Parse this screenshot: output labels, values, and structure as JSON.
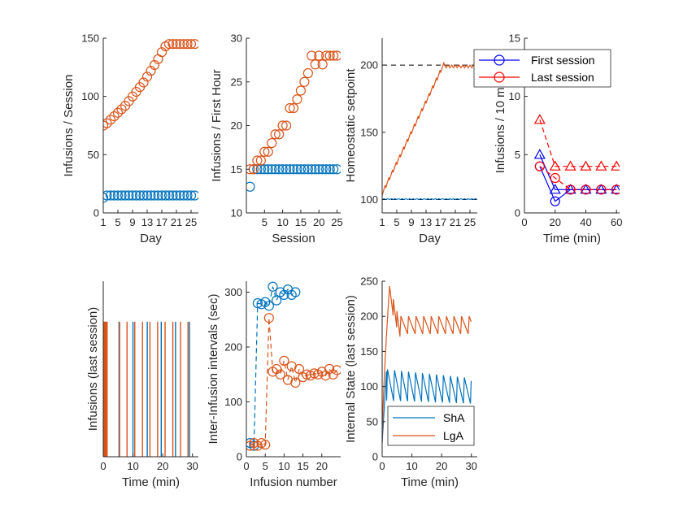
{
  "colors": {
    "sha": "#0072bd",
    "lga": "#d95319",
    "first": "#0000ff",
    "last": "#ff0000",
    "axis": "#262626"
  },
  "chart_data": [
    {
      "type": "scatter",
      "xlabel": "Day",
      "ylabel": "Infusions / Session",
      "xlim": [
        1,
        27
      ],
      "ylim": [
        0,
        150
      ],
      "x_ticks": [
        1,
        5,
        9,
        13,
        17,
        21,
        25
      ],
      "x_tick_labels": [
        "1",
        "5",
        "9",
        "13",
        "17",
        "21",
        "25"
      ],
      "y_ticks": [
        0,
        50,
        100,
        150
      ],
      "y_tick_labels": [
        "0",
        "50",
        "100",
        "150"
      ],
      "series": [
        {
          "color_key": "sha",
          "marker": "circle",
          "x": [
            1,
            2,
            3,
            4,
            5,
            6,
            7,
            8,
            9,
            10,
            11,
            12,
            13,
            14,
            15,
            16,
            17,
            18,
            19,
            20,
            21,
            22,
            23,
            24,
            25,
            26
          ],
          "y": [
            13,
            15,
            15,
            15,
            15,
            15,
            15,
            15,
            15,
            15,
            15,
            15,
            15,
            15,
            15,
            15,
            15,
            15,
            15,
            15,
            15,
            15,
            15,
            15,
            15,
            15
          ]
        },
        {
          "color_key": "lga",
          "marker": "circle",
          "x": [
            1,
            2,
            3,
            4,
            5,
            6,
            7,
            8,
            9,
            10,
            11,
            12,
            13,
            14,
            15,
            16,
            17,
            18,
            19,
            20,
            21,
            22,
            23,
            24,
            25,
            26
          ],
          "y": [
            75,
            77,
            80,
            83,
            86,
            89,
            92,
            96,
            100,
            104,
            108,
            112,
            117,
            122,
            127,
            132,
            138,
            143,
            145,
            145,
            145,
            145,
            145,
            145,
            145,
            145
          ]
        }
      ]
    },
    {
      "type": "scatter",
      "xlabel": "Session",
      "ylabel": "Infusions / First Hour",
      "xlim": [
        0,
        26
      ],
      "ylim": [
        10,
        30
      ],
      "x_ticks": [
        5,
        10,
        15,
        20,
        25
      ],
      "x_tick_labels": [
        "5",
        "10",
        "15",
        "20",
        "25"
      ],
      "y_ticks": [
        10,
        15,
        20,
        25,
        30
      ],
      "y_tick_labels": [
        "10",
        "15",
        "20",
        "25",
        "30"
      ],
      "series": [
        {
          "color_key": "sha",
          "marker": "circle",
          "x": [
            1,
            2,
            3,
            4,
            5,
            6,
            7,
            8,
            9,
            10,
            11,
            12,
            13,
            14,
            15,
            16,
            17,
            18,
            19,
            20,
            21,
            22,
            23,
            24,
            25
          ],
          "y": [
            13,
            15,
            15,
            15,
            15,
            15,
            15,
            15,
            15,
            15,
            15,
            15,
            15,
            15,
            15,
            15,
            15,
            15,
            15,
            15,
            15,
            15,
            15,
            15,
            15
          ]
        },
        {
          "color_key": "lga",
          "marker": "circle",
          "x": [
            1,
            2,
            3,
            4,
            5,
            6,
            7,
            8,
            9,
            10,
            11,
            12,
            13,
            14,
            15,
            16,
            17,
            18,
            19,
            20,
            21,
            22,
            23,
            24,
            25
          ],
          "y": [
            15,
            15,
            16,
            16,
            17,
            17,
            18,
            19,
            19,
            20,
            20,
            22,
            22,
            23,
            24,
            25,
            26,
            28,
            27,
            28,
            27,
            28,
            28,
            28,
            28
          ]
        }
      ]
    },
    {
      "type": "line",
      "xlabel": "Day",
      "ylabel": "Homeostatic setpoint",
      "xlim": [
        1,
        27
      ],
      "ylim": [
        90,
        220
      ],
      "x_ticks": [
        1,
        5,
        9,
        13,
        17,
        21,
        25
      ],
      "x_tick_labels": [
        "1",
        "5",
        "9",
        "13",
        "17",
        "21",
        "25"
      ],
      "y_ticks": [
        100,
        150,
        200
      ],
      "y_tick_labels": [
        "100",
        "150",
        "200"
      ],
      "reference_lines": [
        {
          "y": 100,
          "dash": "dashed",
          "color_key": "axis"
        },
        {
          "y": 200,
          "dash": "dashed",
          "color_key": "axis"
        }
      ],
      "series": [
        {
          "color_key": "sha",
          "sawtooth_start": 100,
          "sawtooth_end": 100.5
        },
        {
          "color_key": "lga",
          "sawtooth_start": 103,
          "sawtooth_end": 200,
          "plateau_day": 18
        }
      ]
    },
    {
      "type": "line",
      "xlabel": "Time (min)",
      "ylabel": "Infusions / 10 min",
      "xlim": [
        0,
        62
      ],
      "ylim": [
        0,
        15
      ],
      "x_ticks": [
        0,
        20,
        40,
        60
      ],
      "x_tick_labels": [
        "0",
        "20",
        "40",
        "60"
      ],
      "y_ticks": [
        0,
        5,
        10,
        15
      ],
      "y_tick_labels": [
        "0",
        "5",
        "10",
        "15"
      ],
      "legend": {
        "placement": "top-right",
        "entries": [
          {
            "label": "First session",
            "color_key": "first"
          },
          {
            "label": "Last session",
            "color_key": "last"
          }
        ]
      },
      "series": [
        {
          "color_key": "first",
          "marker": "circle",
          "dash": "solid",
          "x": [
            10,
            20,
            30,
            40,
            50,
            60
          ],
          "y": [
            4,
            1,
            2,
            2,
            2,
            2
          ]
        },
        {
          "color_key": "first",
          "marker": "triangle",
          "dash": "solid",
          "x": [
            10,
            20,
            30,
            40,
            50,
            60
          ],
          "y": [
            5,
            2,
            2,
            2,
            2,
            2
          ]
        },
        {
          "color_key": "last",
          "marker": "circle",
          "dash": "dashed",
          "x": [
            10,
            20,
            30,
            40,
            50,
            60
          ],
          "y": [
            4,
            3,
            2,
            2,
            2,
            2
          ]
        },
        {
          "color_key": "last",
          "marker": "triangle",
          "dash": "dashed",
          "x": [
            10,
            20,
            30,
            40,
            50,
            60
          ],
          "y": [
            8,
            4,
            4,
            4,
            4,
            4
          ]
        }
      ]
    },
    {
      "type": "event_raster",
      "xlabel": "Time (min)",
      "ylabel": "Infusions (last session)",
      "xlim": [
        0,
        32
      ],
      "ylim": [
        0,
        1.3
      ],
      "x_ticks": [
        0,
        10,
        20,
        30
      ],
      "x_tick_labels": [
        "0",
        "10",
        "20",
        "30"
      ],
      "series": [
        {
          "color_key": "sha",
          "times": [
            0.2,
            0.4,
            0.6,
            5.3,
            10.0,
            14.8,
            19.5,
            24.3,
            29.0
          ]
        },
        {
          "color_key": "lga",
          "times": [
            0.1,
            0.3,
            0.5,
            0.7,
            0.9,
            1.1,
            1.3,
            5.5,
            8.0,
            10.6,
            13.2,
            15.7,
            18.3,
            20.8,
            23.4,
            26.0,
            28.5
          ]
        }
      ]
    },
    {
      "type": "scatter",
      "xlabel": "Infusion number",
      "ylabel": "Inter-Infusion intervals (sec)",
      "xlim": [
        0,
        25
      ],
      "ylim": [
        0,
        320
      ],
      "x_ticks": [
        0,
        5,
        10,
        15,
        20
      ],
      "x_tick_labels": [
        "0",
        "5",
        "10",
        "15",
        "20"
      ],
      "y_ticks": [
        0,
        100,
        200,
        300
      ],
      "y_tick_labels": [
        "0",
        "100",
        "200",
        "300"
      ],
      "series": [
        {
          "color_key": "sha",
          "marker": "circle",
          "dash": "dashed",
          "x": [
            1,
            2,
            3,
            4,
            5,
            6,
            7,
            8,
            9,
            10,
            11,
            12,
            13
          ],
          "y": [
            25,
            20,
            280,
            278,
            282,
            275,
            310,
            285,
            300,
            295,
            305,
            295,
            300
          ]
        },
        {
          "color_key": "lga",
          "marker": "circle",
          "dash": "dashed",
          "x": [
            1,
            2,
            3,
            4,
            5,
            6,
            7,
            8,
            9,
            10,
            11,
            12,
            13,
            14,
            15,
            16,
            17,
            18,
            19,
            20,
            21,
            22,
            23,
            24
          ],
          "y": [
            20,
            25,
            20,
            25,
            22,
            253,
            155,
            160,
            150,
            175,
            140,
            165,
            135,
            160,
            145,
            150,
            148,
            152,
            150,
            155,
            148,
            160,
            150,
            158
          ]
        }
      ]
    },
    {
      "type": "line",
      "xlabel": "Time (min)",
      "ylabel": "Internal State (last session)",
      "xlim": [
        0,
        32
      ],
      "ylim": [
        0,
        250
      ],
      "x_ticks": [
        0,
        10,
        20,
        30
      ],
      "x_tick_labels": [
        "0",
        "10",
        "20",
        "30"
      ],
      "y_ticks": [
        0,
        50,
        100,
        150,
        200,
        250
      ],
      "y_tick_labels": [
        "0",
        "50",
        "100",
        "150",
        "200",
        "250"
      ],
      "legend": {
        "placement": "bottom-left",
        "entries": [
          {
            "label": "ShA",
            "color_key": "sha"
          },
          {
            "label": "LgA",
            "color_key": "lga"
          }
        ]
      },
      "series": [
        {
          "name": "ShA",
          "color_key": "sha",
          "decay_low": 80,
          "decay_high": 125,
          "period": 2.35
        },
        {
          "name": "LgA",
          "color_key": "lga",
          "peak": 243,
          "settle_low": 175,
          "settle_high": 200,
          "period": 2.55
        }
      ]
    }
  ]
}
